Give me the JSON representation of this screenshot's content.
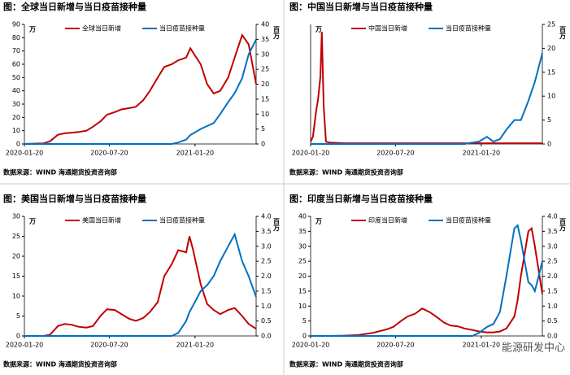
{
  "chart_data": [
    {
      "type": "line",
      "title": "图：全球当日新增与当日疫苗接种量",
      "source": "数据来源：WIND   海通期货投资咨询部",
      "y_unit": "万",
      "y2_unit": "百万",
      "x": [
        "2020-01-20",
        "2020-02-01",
        "2020-02-15",
        "2020-03-01",
        "2020-03-15",
        "2020-04-01",
        "2020-04-15",
        "2020-05-01",
        "2020-05-15",
        "2020-06-01",
        "2020-06-15",
        "2020-07-01",
        "2020-07-15",
        "2020-08-01",
        "2020-08-15",
        "2020-09-01",
        "2020-09-15",
        "2020-10-01",
        "2020-10-15",
        "2020-11-01",
        "2020-11-15",
        "2020-12-01",
        "2020-12-15",
        "2021-01-01",
        "2021-01-10",
        "2021-02-01",
        "2021-02-15",
        "2021-03-01",
        "2021-03-15",
        "2021-04-01",
        "2021-04-15",
        "2021-05-01",
        "2021-05-15",
        "2021-05-31"
      ],
      "xlim": [
        "2020-01-20",
        "2021-05-31"
      ],
      "xticks": [
        "2020-01-20",
        "2020-07-20",
        "2021-01-20"
      ],
      "ylim": [
        0,
        90
      ],
      "yticks": [
        0,
        10,
        20,
        30,
        40,
        50,
        60,
        70,
        80,
        90
      ],
      "y2lim": [
        0,
        40
      ],
      "y2ticks": [
        0,
        5,
        10,
        15,
        20,
        25,
        30,
        35,
        40
      ],
      "series": [
        {
          "name": "全球当日新增",
          "color": "#c00000",
          "values": [
            0,
            0.2,
            0.3,
            0.5,
            2,
            7,
            8,
            8.5,
            9,
            10,
            13,
            17,
            22,
            24,
            26,
            27,
            28,
            33,
            40,
            50,
            58,
            60,
            63,
            65,
            72,
            60,
            45,
            38,
            40,
            50,
            65,
            82,
            75,
            45
          ]
        },
        {
          "name": "当日疫苗接种量",
          "color": "#0070c0",
          "axis": "y2",
          "values": [
            0,
            0,
            0,
            0,
            0,
            0,
            0,
            0,
            0,
            0,
            0,
            0,
            0,
            0,
            0,
            0,
            0,
            0,
            0,
            0,
            0,
            0,
            0.5,
            1.5,
            3,
            5,
            6,
            7,
            10,
            14,
            17,
            22,
            30,
            35
          ]
        }
      ]
    },
    {
      "type": "line",
      "title": "图：中国当日新增与当日疫苗接种量",
      "source": "数据来源：WIND   海通期货投资咨询部",
      "y_unit": "万",
      "y2_unit": "百万",
      "x": [
        "2020-01-20",
        "2020-01-25",
        "2020-02-01",
        "2020-02-05",
        "2020-02-10",
        "2020-02-13",
        "2020-02-17",
        "2020-02-22",
        "2020-03-01",
        "2020-04-01",
        "2020-05-01",
        "2020-06-01",
        "2020-07-01",
        "2020-08-01",
        "2020-09-01",
        "2020-10-01",
        "2020-11-01",
        "2020-12-01",
        "2020-12-15",
        "2021-01-01",
        "2021-01-15",
        "2021-02-01",
        "2021-02-15",
        "2021-03-01",
        "2021-03-15",
        "2021-04-01",
        "2021-04-15",
        "2021-05-01",
        "2021-05-15",
        "2021-05-31"
      ],
      "xlim": [
        "2020-01-20",
        "2021-05-31"
      ],
      "xticks": [
        "2020-01-20",
        "2020-07-20",
        "2021-01-20"
      ],
      "ylim": [
        0,
        1.6
      ],
      "y2lim": [
        0,
        25
      ],
      "y2ticks": [
        0,
        5,
        10,
        15,
        20,
        25
      ],
      "series": [
        {
          "name": "中国当日新增",
          "color": "#c00000",
          "values": [
            0.03,
            0.1,
            0.45,
            0.6,
            0.9,
            1.5,
            0.5,
            0.03,
            0.02,
            0.01,
            0.01,
            0.01,
            0.01,
            0.01,
            0.01,
            0.01,
            0.01,
            0.01,
            0.01,
            0.01,
            0.01,
            0.01,
            0.01,
            0.01,
            0.01,
            0.01,
            0.01,
            0.01,
            0.01,
            0.01
          ]
        },
        {
          "name": "当日疫苗接种量",
          "color": "#0070c0",
          "axis": "y2",
          "values": [
            0,
            0,
            0,
            0,
            0,
            0,
            0,
            0,
            0,
            0,
            0,
            0,
            0,
            0,
            0,
            0,
            0,
            0,
            0,
            0.3,
            0.5,
            1.5,
            0.5,
            1,
            3,
            5,
            5,
            9,
            13,
            19
          ]
        }
      ]
    },
    {
      "type": "line",
      "title": "图：美国当日新增与当日疫苗接种量",
      "source": "数据来源：WIND   海通期货投资咨询部",
      "y_unit": "万",
      "y2_unit": "百万",
      "x": [
        "2020-01-20",
        "2020-02-01",
        "2020-02-15",
        "2020-03-01",
        "2020-03-15",
        "2020-04-01",
        "2020-04-15",
        "2020-05-01",
        "2020-05-15",
        "2020-06-01",
        "2020-06-15",
        "2020-07-01",
        "2020-07-15",
        "2020-08-01",
        "2020-08-15",
        "2020-09-01",
        "2020-09-15",
        "2020-10-01",
        "2020-10-15",
        "2020-11-01",
        "2020-11-15",
        "2020-12-01",
        "2020-12-15",
        "2021-01-01",
        "2021-01-08",
        "2021-01-15",
        "2021-02-01",
        "2021-02-15",
        "2021-03-01",
        "2021-03-15",
        "2021-04-01",
        "2021-04-15",
        "2021-05-01",
        "2021-05-15",
        "2021-05-31"
      ],
      "xlim": [
        "2020-01-20",
        "2021-05-31"
      ],
      "xticks": [
        "2020-01-20",
        "2020-07-20",
        "2021-01-20"
      ],
      "ylim": [
        0,
        30
      ],
      "yticks": [
        0,
        5,
        10,
        15,
        20,
        25,
        30
      ],
      "y2lim": [
        0,
        4
      ],
      "y2ticks": [
        {
          "value": 0,
          "label": "0.0"
        },
        {
          "value": 0.5,
          "label": "0.5"
        },
        {
          "value": 1,
          "label": "1.0"
        },
        {
          "value": 1.5,
          "label": "1.5"
        },
        {
          "value": 2,
          "label": "2.0"
        },
        {
          "value": 2.5,
          "label": "2.5"
        },
        {
          "value": 3,
          "label": "3.0"
        },
        {
          "value": 3.5,
          "label": "3.5"
        },
        {
          "value": 4,
          "label": "4.0"
        }
      ],
      "series": [
        {
          "name": "美国当日新增",
          "color": "#c00000",
          "values": [
            0,
            0,
            0,
            0,
            0.3,
            2.5,
            3,
            2.8,
            2.3,
            2.1,
            2.5,
            5,
            6.7,
            6.5,
            5.5,
            4.3,
            3.8,
            4.5,
            6,
            8.5,
            15,
            18,
            21.5,
            21,
            25,
            22,
            13,
            8,
            6.5,
            5.5,
            6.5,
            7,
            5,
            3,
            1.8
          ]
        },
        {
          "name": "当日疫苗接种量",
          "color": "#0070c0",
          "axis": "y2",
          "values": [
            0,
            0,
            0,
            0,
            0,
            0,
            0,
            0,
            0,
            0,
            0,
            0,
            0,
            0,
            0,
            0,
            0,
            0,
            0,
            0,
            0,
            0,
            0.1,
            0.5,
            0.8,
            1,
            1.5,
            1.7,
            2,
            2.5,
            3,
            3.4,
            2.5,
            2,
            1.3
          ]
        }
      ]
    },
    {
      "type": "line",
      "title": "图：印度当日新增与当日疫苗接种量",
      "source": "数据来源：WIND   海通期货投资咨询部",
      "y_unit": "万",
      "y2_unit": "百万",
      "x": [
        "2020-01-20",
        "2020-03-01",
        "2020-04-01",
        "2020-05-01",
        "2020-06-01",
        "2020-07-01",
        "2020-07-15",
        "2020-08-01",
        "2020-08-15",
        "2020-09-01",
        "2020-09-15",
        "2020-10-01",
        "2020-10-15",
        "2020-11-01",
        "2020-11-15",
        "2020-12-01",
        "2020-12-15",
        "2021-01-01",
        "2021-01-15",
        "2021-02-01",
        "2021-02-15",
        "2021-03-01",
        "2021-03-15",
        "2021-04-01",
        "2021-04-08",
        "2021-04-15",
        "2021-05-01",
        "2021-05-08",
        "2021-05-15",
        "2021-05-31"
      ],
      "xlim": [
        "2020-01-20",
        "2021-05-31"
      ],
      "xticks": [
        "2020-01-20",
        "2020-07-20",
        "2021-01-20"
      ],
      "ylim": [
        0,
        40
      ],
      "yticks": [
        0,
        5,
        10,
        15,
        20,
        25,
        30,
        35,
        40
      ],
      "y2lim": [
        0,
        4
      ],
      "y2ticks": [
        {
          "value": 0,
          "label": "0.0"
        },
        {
          "value": 0.5,
          "label": "0.5"
        },
        {
          "value": 1,
          "label": "1.0"
        },
        {
          "value": 1.5,
          "label": "1.5"
        },
        {
          "value": 2,
          "label": "2.0"
        },
        {
          "value": 2.5,
          "label": "2.5"
        },
        {
          "value": 3,
          "label": "3.0"
        },
        {
          "value": 3.5,
          "label": "3.5"
        },
        {
          "value": 4,
          "label": "4.0"
        }
      ],
      "series": [
        {
          "name": "印度当日新增",
          "color": "#c00000",
          "values": [
            0,
            0,
            0.1,
            0.3,
            1,
            2.2,
            3,
            5,
            6.5,
            7.5,
            9.2,
            8,
            6.5,
            4.5,
            3.5,
            3.2,
            2.5,
            2,
            1.5,
            1.2,
            1.2,
            1.5,
            2.5,
            6.5,
            12,
            20,
            35,
            36,
            30,
            14
          ]
        },
        {
          "name": "当日疫苗接种量",
          "color": "#0070c0",
          "axis": "y2",
          "values": [
            0,
            0,
            0,
            0,
            0,
            0,
            0,
            0,
            0,
            0,
            0,
            0,
            0,
            0,
            0,
            0,
            0,
            0,
            0.1,
            0.3,
            0.4,
            0.8,
            2,
            3.6,
            3.7,
            3.2,
            1.8,
            1.7,
            1.5,
            2.5
          ]
        }
      ]
    }
  ],
  "watermark": "能源研发中心"
}
